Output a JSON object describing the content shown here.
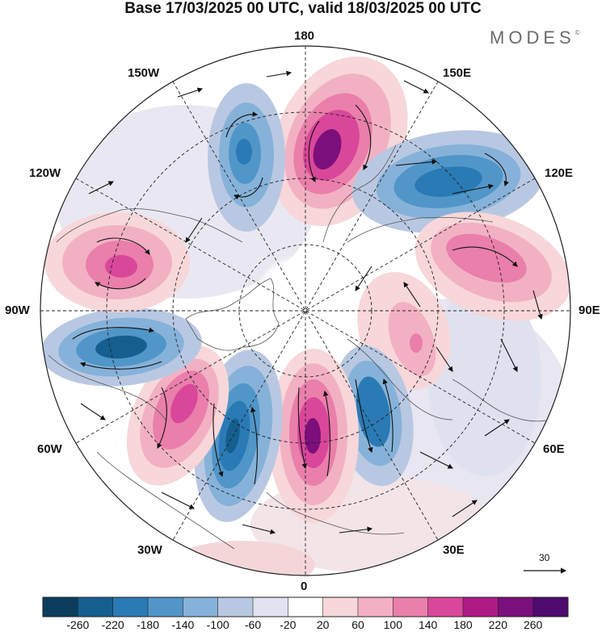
{
  "title": "Base 17/03/2025 00 UTC, valid 18/03/2025 00 UTC",
  "brand": {
    "text": "MODES",
    "mark": "©"
  },
  "longitude_labels": {
    "top": "180",
    "bottom": "0",
    "left": "90W",
    "right": "90E",
    "upper_left_1": "150W",
    "upper_left_2": "120W",
    "upper_right_1": "150E",
    "upper_right_2": "120E",
    "lower_left_1": "60W",
    "lower_left_2": "30W",
    "lower_right_1": "60E",
    "lower_right_2": "30E"
  },
  "reference_vector": {
    "value": "30"
  },
  "colorbar": {
    "labels": [
      "-260",
      "-220",
      "-180",
      "-140",
      "-100",
      "-60",
      "-20",
      "20",
      "60",
      "100",
      "140",
      "180",
      "220",
      "260"
    ],
    "colors": [
      "#0b3d5e",
      "#155f8f",
      "#2a7ab5",
      "#5096c8",
      "#86b2d9",
      "#b9c8e2",
      "#e2e3f0",
      "#ffffff",
      "#f7d7d9",
      "#f2b1c3",
      "#e97faa",
      "#d9479a",
      "#ad1a86",
      "#7c0f7b",
      "#4e0a6e"
    ]
  },
  "anomaly_centers": [
    {
      "lon_dir": "165E",
      "sign": "positive",
      "magnitude": "strong"
    },
    {
      "lon_dir": "135E",
      "sign": "negative",
      "magnitude": "moderate"
    },
    {
      "lon_dir": "100E",
      "sign": "positive",
      "magnitude": "moderate"
    },
    {
      "lon_dir": "60E",
      "sign": "positive",
      "magnitude": "weak"
    },
    {
      "lon_dir": "20E",
      "sign": "negative",
      "magnitude": "moderate"
    },
    {
      "lon_dir": "0",
      "sign": "positive",
      "magnitude": "strong"
    },
    {
      "lon_dir": "25W",
      "sign": "negative",
      "magnitude": "strong"
    },
    {
      "lon_dir": "45W",
      "sign": "positive",
      "magnitude": "strong"
    },
    {
      "lon_dir": "80W",
      "sign": "negative",
      "magnitude": "strong"
    },
    {
      "lon_dir": "105W",
      "sign": "positive",
      "magnitude": "moderate"
    },
    {
      "lon_dir": "165W",
      "sign": "negative",
      "magnitude": "moderate"
    }
  ]
}
